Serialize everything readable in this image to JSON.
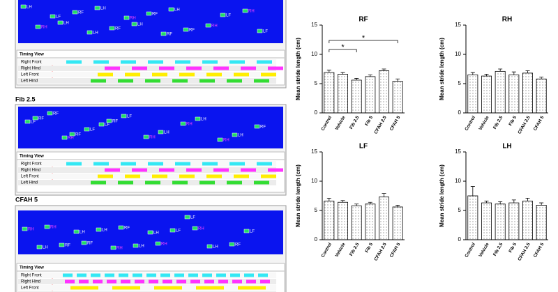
{
  "panels": [
    {
      "timing_title": "Timing View",
      "rows": [
        "Right Front",
        "Right Hind",
        "Left Front",
        "Left Hind"
      ],
      "paw_labels": [
        "LH",
        "LH",
        "LH",
        "LH",
        "LH",
        "RH",
        "RH",
        "RH",
        "RF",
        "RF",
        "RF",
        "RF",
        "LF",
        "LF",
        "LF",
        "LH",
        "RH",
        "RF"
      ]
    },
    {
      "caption": "Fib 2.5",
      "timing_title": "Timing View",
      "rows": [
        "Right Front",
        "Right Hind",
        "Left Front",
        "Left Hind"
      ],
      "paw_labels": [
        "RF",
        "RF",
        "RF",
        "RH",
        "RH",
        "RH",
        "RF",
        "RF",
        "LF",
        "LF",
        "LH",
        "LH",
        "LH",
        "LF",
        "RH",
        "LF"
      ]
    },
    {
      "caption": "CFAH 5",
      "timing_title": "Timing View",
      "rows": [
        "Right Front",
        "Right Hind",
        "Left Front",
        "Left Hind"
      ],
      "paw_labels": [
        "RH",
        "RF",
        "RF",
        "RH",
        "RH",
        "RF",
        "RH",
        "RF",
        "LH",
        "LH",
        "LF",
        "LH",
        "LF",
        "LH",
        "LH",
        "RH",
        "LH",
        "LF"
      ]
    }
  ],
  "chart_data": [
    {
      "type": "bar",
      "title": "RF",
      "y_label": "Mean stride length (cm)",
      "categories": [
        "Control",
        "Vehicle",
        "Fib 2.5",
        "Fib 5",
        "CFAH 2.5",
        "CFAH 5"
      ],
      "values": [
        6.9,
        6.6,
        5.6,
        6.2,
        7.2,
        5.4
      ],
      "errors": [
        0.4,
        0.3,
        0.3,
        0.3,
        0.3,
        0.4
      ],
      "color": "#e8e8e8",
      "ylim": [
        0,
        15
      ],
      "yticks": [
        0,
        5,
        10,
        15
      ],
      "annotations": [
        {
          "text": "*",
          "from": 0,
          "to": 2
        },
        {
          "text": "*",
          "from": 0,
          "to": 5
        }
      ]
    },
    {
      "type": "bar",
      "title": "RH",
      "y_label": "Mean stride length (cm)",
      "categories": [
        "Control",
        "Vehicle",
        "Fib 2.5",
        "Fib 5",
        "CFAH 2.5",
        "CFAH 5"
      ],
      "values": [
        6.5,
        6.3,
        7.1,
        6.5,
        6.8,
        5.8
      ],
      "errors": [
        0.4,
        0.3,
        0.4,
        0.5,
        0.4,
        0.3
      ],
      "color": "#e8e8e8",
      "ylim": [
        0,
        15
      ],
      "yticks": [
        0,
        5,
        10,
        15
      ]
    },
    {
      "type": "bar",
      "title": "LF",
      "y_label": "Mean stride length (cm)",
      "categories": [
        "Control",
        "Vehicle",
        "Fib 2.5",
        "Fib 5",
        "CFAH 2.5",
        "CFAH 5"
      ],
      "values": [
        6.6,
        6.4,
        5.8,
        6.1,
        7.3,
        5.6
      ],
      "errors": [
        0.5,
        0.3,
        0.3,
        0.3,
        0.6,
        0.3
      ],
      "color": "#e8e8e8",
      "ylim": [
        0,
        15
      ],
      "yticks": [
        0,
        5,
        10,
        15
      ]
    },
    {
      "type": "bar",
      "title": "LH",
      "y_label": "Mean stride length (cm)",
      "categories": [
        "Control",
        "Vehicle",
        "Fib 2.5",
        "Fib 5",
        "CFAH 2.5",
        "CFAH 5"
      ],
      "values": [
        7.5,
        6.3,
        6.1,
        6.3,
        6.6,
        5.9
      ],
      "errors": [
        1.6,
        0.3,
        0.4,
        0.5,
        0.5,
        0.4
      ],
      "color": "#e8e8e8",
      "ylim": [
        0,
        15
      ],
      "yticks": [
        0,
        5,
        10,
        15
      ]
    }
  ]
}
